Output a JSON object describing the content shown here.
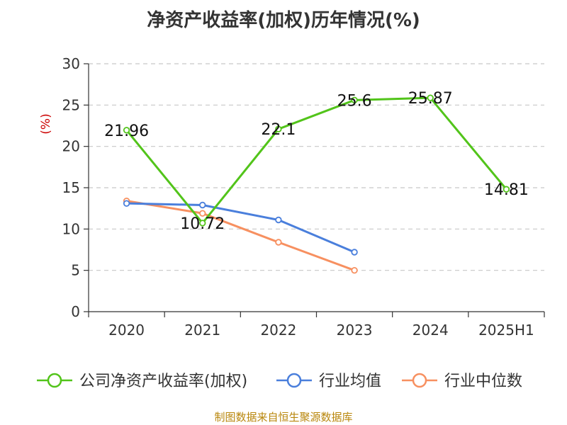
{
  "title": "净资产收益率(加权)历年情况(%)",
  "source": "制图数据来自恒生聚源数据库",
  "chart_data": {
    "type": "line",
    "title": "净资产收益率(加权)历年情况(%)",
    "ylabel": "(%)",
    "xlabel": "",
    "ylim": [
      0,
      30
    ],
    "yticks": [
      0,
      5,
      10,
      15,
      20,
      25,
      30
    ],
    "grid": true,
    "legend_position": "bottom",
    "categories": [
      "2020",
      "2021",
      "2022",
      "2023",
      "2024",
      "2025H1"
    ],
    "series": [
      {
        "name": "公司净资产收益率(加权)",
        "color": "#52c41a",
        "values": [
          21.96,
          10.72,
          22.1,
          25.6,
          25.87,
          14.81
        ],
        "labels": [
          "21.96",
          "10.72",
          "22.1",
          "25.6",
          "25.87",
          "14.81"
        ]
      },
      {
        "name": "行业均值",
        "color": "#4a7fdc",
        "values": [
          13.1,
          12.9,
          11.1,
          7.2,
          null,
          null
        ]
      },
      {
        "name": "行业中位数",
        "color": "#f79060",
        "values": [
          13.4,
          11.9,
          8.4,
          5.0,
          null,
          null
        ]
      }
    ]
  }
}
